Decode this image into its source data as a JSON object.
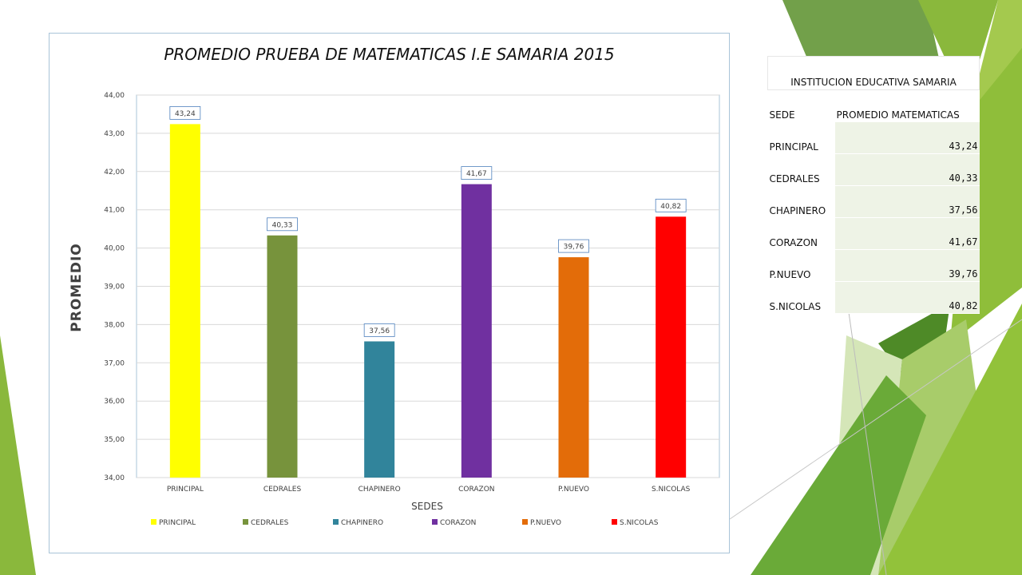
{
  "chart_data": {
    "type": "bar",
    "title": "PROMEDIO PRUEBA DE MATEMATICAS I.E SAMARIA 2015",
    "xlabel": "SEDES",
    "ylabel": "PROMEDIO",
    "categories": [
      "PRINCIPAL",
      "CEDRALES",
      "CHAPINERO",
      "CORAZON",
      "P.NUEVO",
      "S.NICOLAS"
    ],
    "values": [
      43.24,
      40.33,
      37.56,
      41.67,
      39.76,
      40.82
    ],
    "value_labels": [
      "43,24",
      "40,33",
      "37,56",
      "41,67",
      "39,76",
      "40,82"
    ],
    "colors": [
      "#ffff00",
      "#77933c",
      "#31849b",
      "#7030a0",
      "#e36c09",
      "#ff0000"
    ],
    "ylim": [
      34,
      44
    ],
    "yticks": [
      "34,00",
      "35,00",
      "36,00",
      "37,00",
      "38,00",
      "39,00",
      "40,00",
      "41,00",
      "42,00",
      "43,00",
      "44,00"
    ],
    "grid": true,
    "legend": "bottom"
  },
  "table": {
    "title": "INSTITUCION EDUCATIVA SAMARIA",
    "headers": [
      "SEDE",
      "PROMEDIO MATEMATICAS"
    ],
    "rows": [
      [
        "PRINCIPAL",
        "43,24"
      ],
      [
        "CEDRALES",
        "40,33"
      ],
      [
        "CHAPINERO",
        "37,56"
      ],
      [
        "CORAZON",
        "41,67"
      ],
      [
        "P.NUEVO",
        "39,76"
      ],
      [
        "S.NICOLAS",
        "40,82"
      ]
    ]
  }
}
